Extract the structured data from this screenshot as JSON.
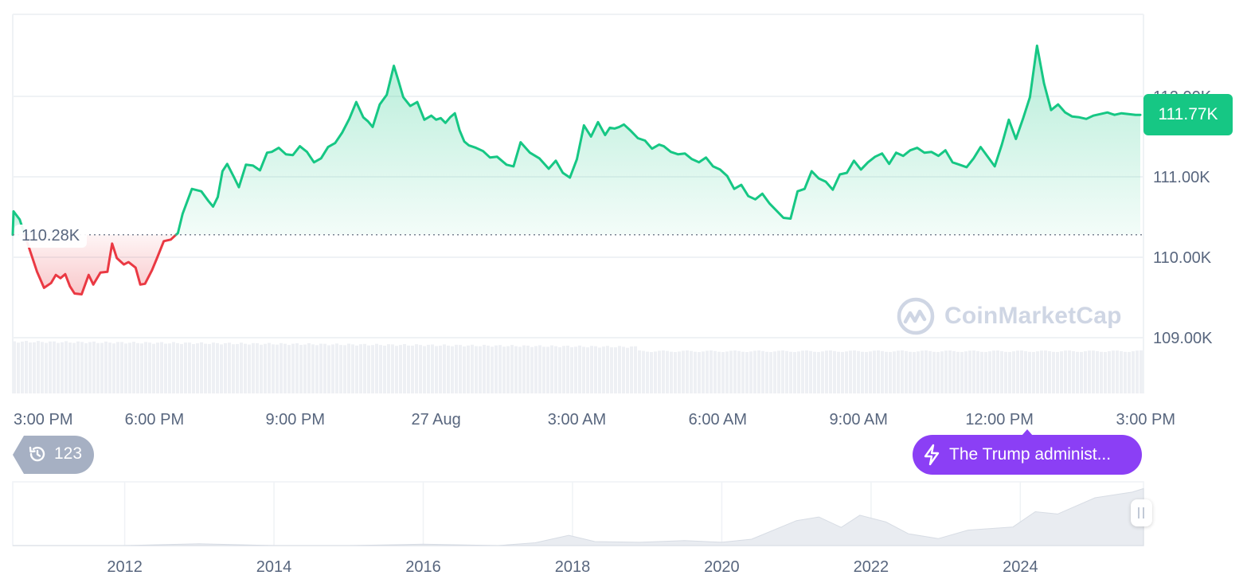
{
  "chart_data": [
    {
      "type": "area",
      "title": "",
      "xlabel": "",
      "ylabel": "",
      "x_tick_labels": [
        "3:00 PM",
        "6:00 PM",
        "9:00 PM",
        "27 Aug",
        "3:00 AM",
        "6:00 AM",
        "9:00 AM",
        "12:00 PM",
        "3:00 PM"
      ],
      "y_tick_labels": [
        "109.00K",
        "110.00K",
        "111.00K",
        "112.00K"
      ],
      "ylim": [
        108.7,
        113.0
      ],
      "reference_price": 110.28,
      "reference_label": "110.28K",
      "current_price": 111.77,
      "current_price_label": "111.77K",
      "grid": true,
      "series": [
        {
          "hours": [
            -0.12,
            0.0,
            0.13,
            0.5,
            0.65,
            0.8,
            0.9,
            1.0,
            1.1,
            1.2,
            1.3,
            1.45,
            1.6,
            1.7,
            1.85,
            2.0,
            2.1,
            2.2,
            2.35,
            2.45,
            2.6,
            2.7,
            2.8,
            2.95,
            3.05,
            3.2,
            3.35,
            3.5,
            3.6,
            3.8,
            4.0,
            4.15,
            4.25,
            4.35,
            4.45,
            4.55,
            4.7,
            4.8,
            4.95,
            5.1,
            5.25,
            5.4,
            5.5,
            5.65,
            5.8,
            5.95,
            6.1,
            6.25,
            6.4,
            6.55,
            6.7,
            6.85,
            7.0,
            7.15,
            7.3,
            7.45,
            7.55,
            7.65,
            7.8,
            7.95,
            8.1,
            8.2,
            8.3,
            8.45,
            8.6,
            8.75,
            8.9,
            9.0,
            9.1,
            9.2,
            9.3,
            9.4,
            9.5,
            9.6,
            9.7,
            9.85,
            10.0,
            10.15,
            10.3,
            10.5,
            10.65,
            10.8,
            11.0,
            11.2,
            11.4,
            11.55,
            11.7,
            11.85,
            12.0,
            12.15,
            12.3,
            12.45,
            12.6,
            12.7,
            12.8,
            12.9,
            13.0,
            13.15,
            13.3,
            13.45,
            13.6,
            13.75,
            13.85,
            14.0,
            14.15,
            14.3,
            14.45,
            14.6,
            14.75,
            14.9,
            15.05,
            15.2,
            15.35,
            15.5,
            15.65,
            15.8,
            15.95,
            16.1,
            16.25,
            16.4,
            16.55,
            16.7,
            16.85,
            17.0,
            17.15,
            17.3,
            17.45,
            17.6,
            17.75,
            17.9,
            18.05,
            18.2,
            18.35,
            18.5,
            18.65,
            18.8,
            18.95,
            19.1,
            19.25,
            19.4,
            19.55,
            19.7,
            19.85,
            20.0,
            20.15,
            20.3,
            20.45,
            20.6,
            20.75,
            20.9,
            21.05,
            21.2,
            21.35,
            21.5,
            21.65,
            21.8,
            21.95,
            22.1,
            22.25,
            22.4,
            22.55,
            22.7,
            22.85,
            23.0,
            23.15,
            23.3,
            23.45,
            23.6,
            23.75,
            23.9,
            24.0
          ],
          "prices": [
            110.28,
            110.57,
            110.47,
            109.82,
            109.62,
            109.68,
            109.78,
            109.74,
            109.79,
            109.64,
            109.55,
            109.54,
            109.78,
            109.66,
            109.81,
            109.82,
            110.17,
            109.99,
            109.91,
            109.94,
            109.87,
            109.66,
            109.67,
            109.84,
            109.98,
            110.2,
            110.22,
            110.3,
            110.54,
            110.85,
            110.82,
            110.7,
            110.63,
            110.75,
            111.07,
            111.16,
            110.99,
            110.87,
            111.15,
            111.14,
            111.08,
            111.3,
            111.31,
            111.36,
            111.28,
            111.27,
            111.38,
            111.31,
            111.18,
            111.23,
            111.37,
            111.42,
            111.55,
            111.72,
            111.93,
            111.74,
            111.69,
            111.62,
            111.9,
            112.02,
            112.38,
            112.19,
            111.99,
            111.88,
            111.93,
            111.71,
            111.76,
            111.71,
            111.73,
            111.67,
            111.74,
            111.79,
            111.58,
            111.44,
            111.39,
            111.36,
            111.32,
            111.24,
            111.25,
            111.15,
            111.13,
            111.43,
            111.3,
            111.23,
            111.1,
            111.2,
            111.05,
            110.99,
            111.22,
            111.64,
            111.5,
            111.68,
            111.52,
            111.61,
            111.6,
            111.62,
            111.65,
            111.57,
            111.48,
            111.45,
            111.35,
            111.4,
            111.38,
            111.31,
            111.28,
            111.29,
            111.22,
            111.18,
            111.24,
            111.13,
            111.09,
            111.01,
            110.85,
            110.9,
            110.76,
            110.72,
            110.79,
            110.67,
            110.58,
            110.49,
            110.48,
            110.82,
            110.85,
            111.07,
            110.98,
            110.94,
            110.84,
            111.03,
            111.05,
            111.2,
            111.09,
            111.18,
            111.25,
            111.29,
            111.16,
            111.3,
            111.26,
            111.33,
            111.36,
            111.3,
            111.31,
            111.26,
            111.33,
            111.18,
            111.15,
            111.12,
            111.23,
            111.37,
            111.25,
            111.13,
            111.4,
            111.71,
            111.47,
            111.72,
            111.99,
            112.63,
            112.16,
            111.83,
            111.9,
            111.8,
            111.75,
            111.74,
            111.72,
            111.76,
            111.78,
            111.8,
            111.77,
            111.79,
            111.78,
            111.77,
            111.77
          ]
        }
      ],
      "volume_note": "volume bars",
      "colors": {
        "up": "#16c784",
        "down": "#ea3943",
        "grid": "#eff2f5",
        "axis_text": "#58667e"
      }
    },
    {
      "type": "area",
      "title": "",
      "x_tick_labels": [
        "2012",
        "2014",
        "2016",
        "2018",
        "2020",
        "2022",
        "2024"
      ],
      "series": [
        {
          "years": [
            2010.5,
            2012,
            2013,
            2014,
            2015,
            2016,
            2017,
            2017.5,
            2017.95,
            2018.3,
            2018.9,
            2019.5,
            2020.0,
            2020.4,
            2021.0,
            2021.3,
            2021.6,
            2021.85,
            2022.2,
            2022.5,
            2022.9,
            2023.3,
            2023.9,
            2024.2,
            2024.5,
            2025.0,
            2025.5,
            2025.65
          ],
          "relative_level": [
            0,
            0.003,
            0.01,
            0.006,
            0.003,
            0.005,
            0.02,
            0.04,
            0.17,
            0.09,
            0.04,
            0.09,
            0.07,
            0.09,
            0.45,
            0.5,
            0.3,
            0.55,
            0.4,
            0.2,
            0.14,
            0.25,
            0.33,
            0.6,
            0.53,
            0.85,
            0.93,
            0.98
          ]
        }
      ]
    }
  ],
  "ui": {
    "watermark_text": "CoinMarketCap",
    "news_text": "The Trump administ...",
    "history_count": "123"
  }
}
